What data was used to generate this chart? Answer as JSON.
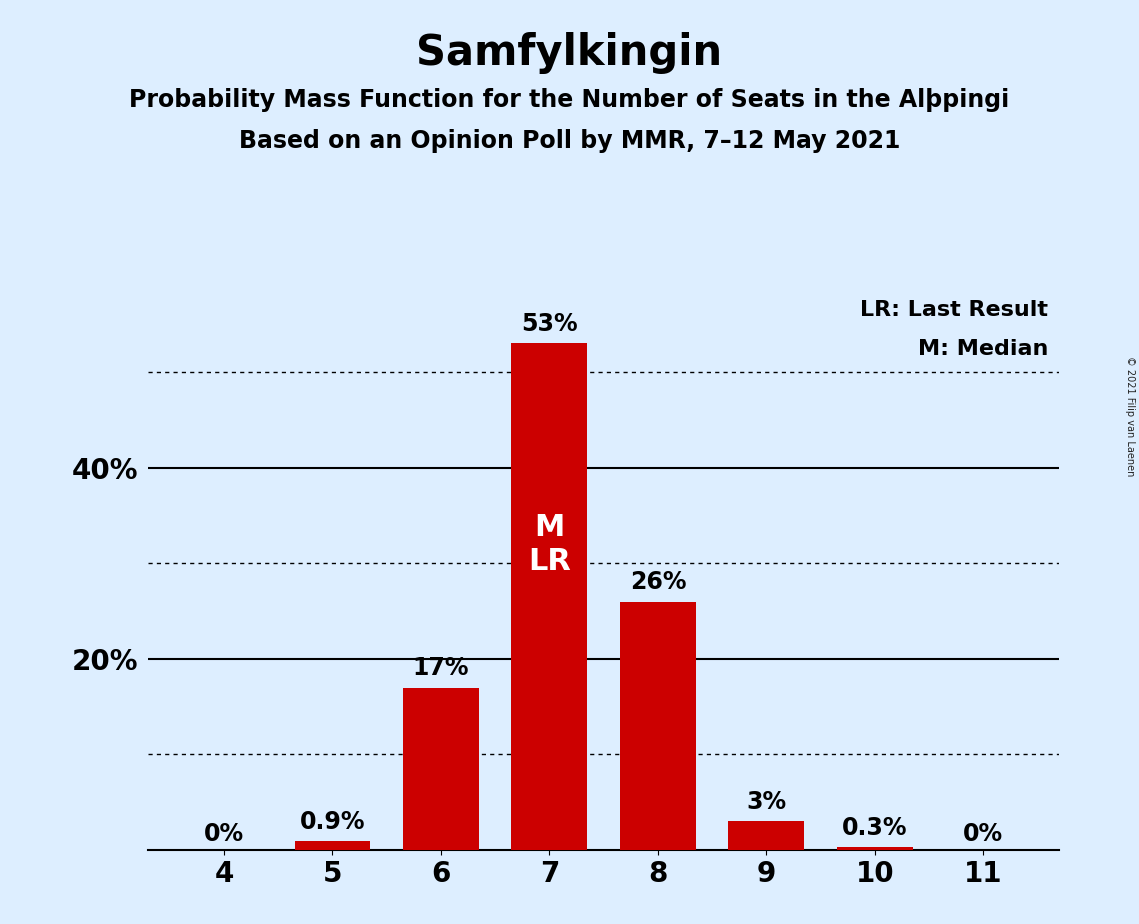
{
  "title": "Samfylkingin",
  "subtitle1": "Probability Mass Function for the Number of Seats in the Alþpingi",
  "subtitle2": "Based on an Opinion Poll by MMR, 7–12 May 2021",
  "copyright": "© 2021 Filip van Laenen",
  "categories": [
    4,
    5,
    6,
    7,
    8,
    9,
    10,
    11
  ],
  "values": [
    0.0,
    0.9,
    17.0,
    53.0,
    26.0,
    3.0,
    0.3,
    0.0
  ],
  "labels": [
    "0%",
    "0.9%",
    "17%",
    "53%",
    "26%",
    "3%",
    "0.3%",
    "0%"
  ],
  "bar_color": "#cc0000",
  "background_color": "#ddeeff",
  "title_fontsize": 30,
  "subtitle_fontsize": 17,
  "label_fontsize": 17,
  "tick_fontsize": 20,
  "ytick_values": [
    0,
    10,
    20,
    30,
    40,
    50
  ],
  "ytick_labels": [
    "",
    "",
    "20%",
    "",
    "40%",
    ""
  ],
  "ylim": [
    0,
    58
  ],
  "median_seat": 7,
  "last_result_seat": 7,
  "legend_lr": "LR: Last Result",
  "legend_m": "M: Median",
  "dotted_lines": [
    10,
    30,
    50
  ],
  "solid_lines": [
    20,
    40
  ],
  "ml_fontsize": 22
}
